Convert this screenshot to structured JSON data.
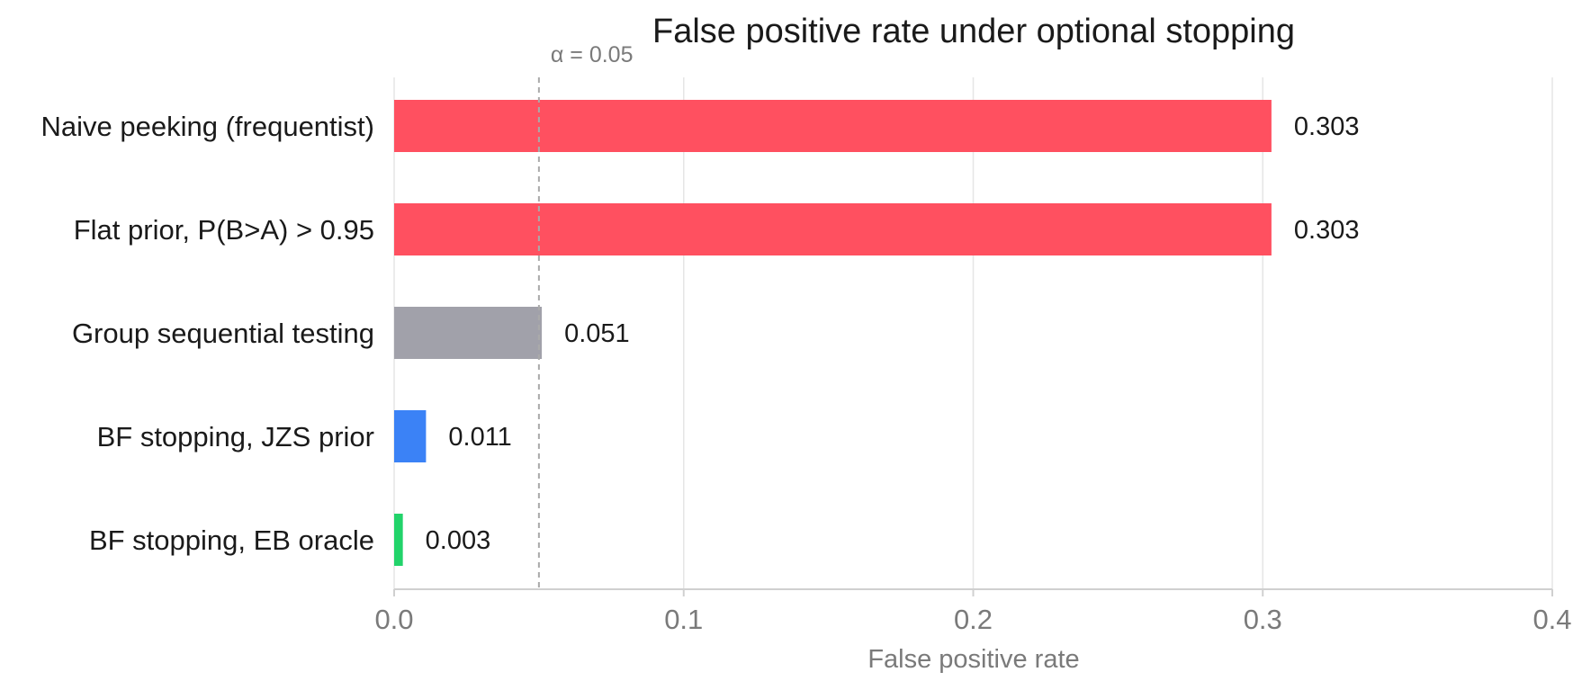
{
  "chart_data": {
    "type": "bar",
    "orientation": "horizontal",
    "title": "False positive rate under optional stopping",
    "xlabel": "False positive rate",
    "ylabel": "",
    "xlim": [
      0,
      0.4
    ],
    "xticks": [
      0.0,
      0.1,
      0.2,
      0.3,
      0.4
    ],
    "xtick_labels": [
      "0.0",
      "0.1",
      "0.2",
      "0.3",
      "0.4"
    ],
    "grid": "vertical",
    "legend": "none",
    "categories": [
      "Naive peeking (frequentist)",
      "Flat prior, P(B>A) > 0.95",
      "Group sequential testing",
      "BF stopping, JZS prior",
      "BF stopping, EB oracle"
    ],
    "values": [
      0.303,
      0.303,
      0.051,
      0.011,
      0.003
    ],
    "value_labels": [
      "0.303",
      "0.303",
      "0.051",
      "0.011",
      "0.003"
    ],
    "colors": [
      "#ff5060",
      "#ff5060",
      "#a1a1aa",
      "#3b82f6",
      "#22d36a"
    ],
    "reference_line": {
      "value": 0.05,
      "label": "α = 0.05",
      "style": "dashed",
      "color": "#aaaaaa"
    },
    "grid_color": "#e6e6e6",
    "axis_color": "#d0d0d0"
  }
}
